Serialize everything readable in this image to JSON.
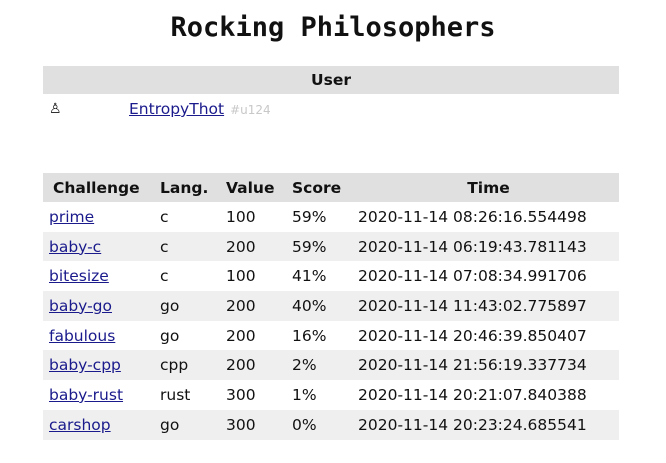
{
  "title": "Rocking Philosophers",
  "user": {
    "header": "User",
    "icon": "♙",
    "name": "EntropyThot",
    "id": "#u124"
  },
  "table": {
    "headers": [
      "Challenge",
      "Lang.",
      "Value",
      "Score",
      "Time"
    ],
    "rows": [
      {
        "challenge": "prime",
        "lang": "c",
        "value": "100",
        "score": "59%",
        "time": "2020-11-14 08:26:16.554498"
      },
      {
        "challenge": "baby-c",
        "lang": "c",
        "value": "200",
        "score": "59%",
        "time": "2020-11-14 06:19:43.781143"
      },
      {
        "challenge": "bitesize",
        "lang": "c",
        "value": "100",
        "score": "41%",
        "time": "2020-11-14 07:08:34.991706"
      },
      {
        "challenge": "baby-go",
        "lang": "go",
        "value": "200",
        "score": "40%",
        "time": "2020-11-14 11:43:02.775897"
      },
      {
        "challenge": "fabulous",
        "lang": "go",
        "value": "200",
        "score": "16%",
        "time": "2020-11-14 20:46:39.850407"
      },
      {
        "challenge": "baby-cpp",
        "lang": "cpp",
        "value": "200",
        "score": "2%",
        "time": "2020-11-14 21:56:19.337734"
      },
      {
        "challenge": "baby-rust",
        "lang": "rust",
        "value": "300",
        "score": "1%",
        "time": "2020-11-14 20:21:07.840388"
      },
      {
        "challenge": "carshop",
        "lang": "go",
        "value": "300",
        "score": "0%",
        "time": "2020-11-14 20:23:24.685541"
      }
    ]
  }
}
